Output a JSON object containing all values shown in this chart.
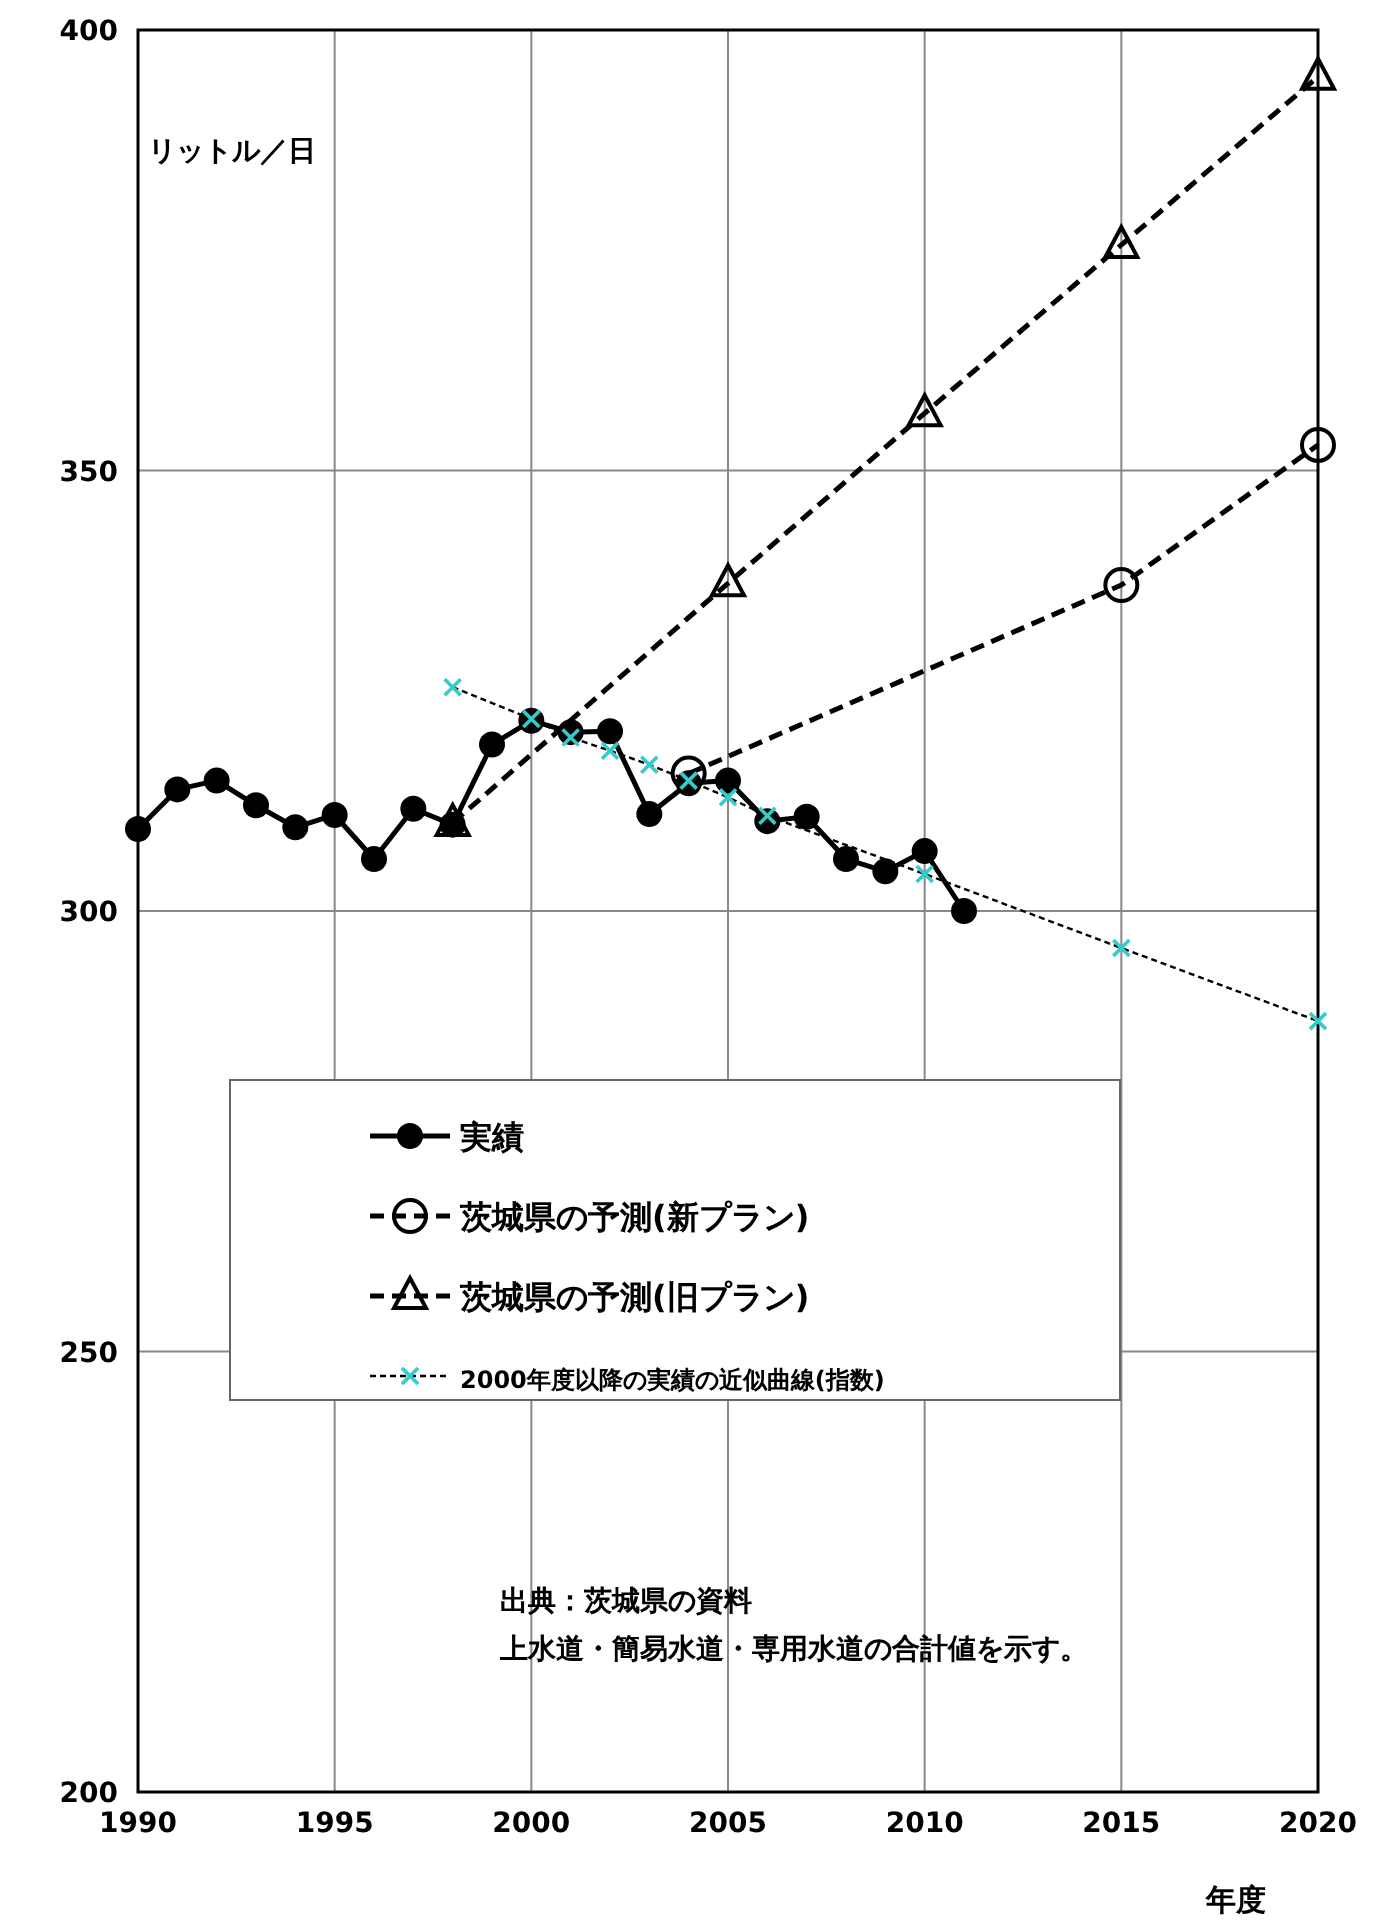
{
  "chart_data": {
    "type": "line",
    "xlabel": "年度",
    "ylabel": "リットル／日",
    "xlim": [
      1990,
      2020
    ],
    "ylim": [
      200,
      400
    ],
    "xticks": [
      1990,
      1995,
      2000,
      2005,
      2010,
      2015,
      2020
    ],
    "yticks": [
      200,
      250,
      300,
      350,
      400
    ],
    "grid": true,
    "legend": "bottom left",
    "annotations": [
      "出典：茨城県の資料",
      "上水道・簡易水道・専用水道の合計値を示す。"
    ],
    "series": [
      {
        "name": "実績",
        "color": "#000000",
        "marker": "circle",
        "line_style": "solid",
        "x": [
          1990,
          1991,
          1992,
          1993,
          1994,
          1995,
          1996,
          1997,
          1998,
          1999,
          2000,
          2001,
          2002,
          2003,
          2004,
          2005,
          2006,
          2007,
          2008,
          2009,
          2010,
          2011
        ],
        "values": [
          309.3,
          313.8,
          314.8,
          312,
          309.5,
          310.9,
          305.9,
          311.6,
          309.8,
          318.9,
          321.6,
          320.3,
          320.4,
          311,
          314.5,
          314.8,
          310.2,
          310.7,
          305.9,
          304.5,
          306.8,
          300
        ]
      },
      {
        "name": "茨城県の予測(新プラン)",
        "color": "#000000",
        "marker": "circle_open",
        "line_style": "dashed",
        "x": [
          2004,
          2015,
          2020
        ],
        "values": [
          315.6,
          337,
          352.9
        ]
      },
      {
        "name": "茨城県の予測(旧プラン)",
        "color": "#000000",
        "marker": "triangle",
        "line_style": "dashed",
        "x": [
          1998,
          2005,
          2010,
          2015,
          2020
        ],
        "values": [
          310,
          337.2,
          356.5,
          375.6,
          394.7
        ]
      },
      {
        "name": "2000年度以降の実績の近似曲線(指数)",
        "color": "#33cccc",
        "marker": "cross",
        "line_style": "dotted",
        "x": [
          1998,
          2000,
          2001,
          2002,
          2003,
          2004,
          2005,
          2006,
          2010,
          2015,
          2020
        ],
        "values": [
          325.4,
          321.8,
          319.7,
          318.2,
          316.6,
          314.8,
          312.9,
          310.8,
          304.2,
          295.8,
          287.5
        ]
      }
    ]
  }
}
